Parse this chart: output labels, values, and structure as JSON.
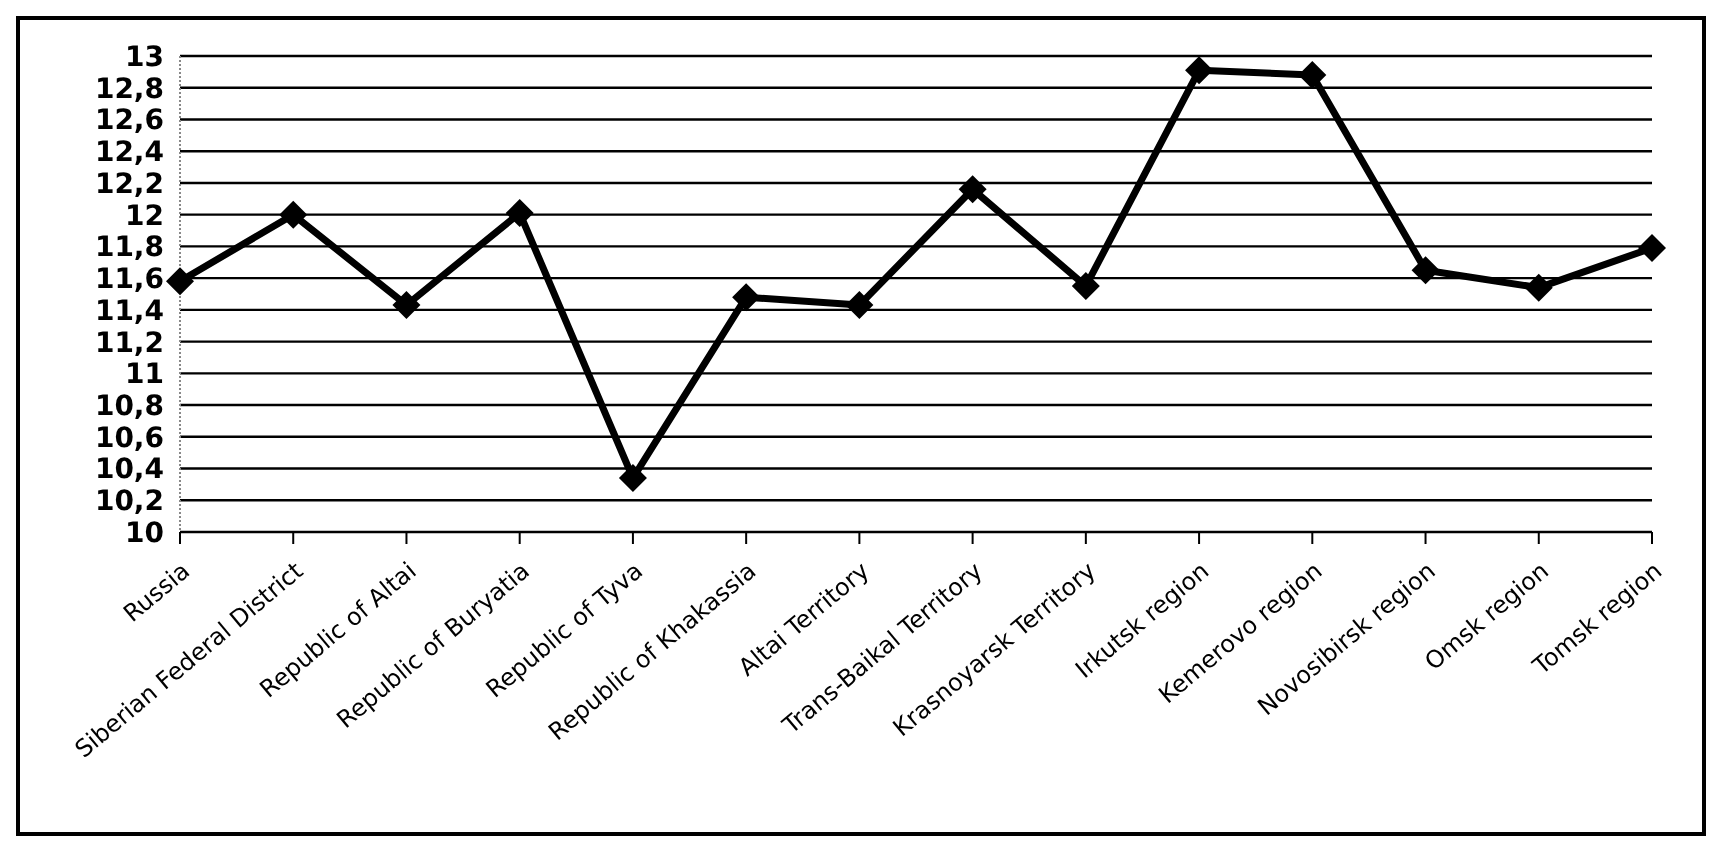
{
  "chart_data": {
    "type": "line",
    "categories": [
      "Russia",
      "Siberian Federal District",
      "Republic of Altai",
      "Republic of Buryatia",
      "Republic of Tyva",
      "Republic of Khakassia",
      "Altai Territory",
      "Trans-Baikal Territory",
      "Krasnoyarsk Territory",
      "Irkutsk region",
      "Kemerovo region",
      "Novosibirsk region",
      "Omsk region",
      "Tomsk region"
    ],
    "series": [
      {
        "color": "#000000",
        "values": [
          11.58,
          12.0,
          11.43,
          12.01,
          10.34,
          11.48,
          11.43,
          12.16,
          11.55,
          12.91,
          12.88,
          11.65,
          11.54,
          11.79
        ]
      }
    ],
    "ylim": [
      10,
      13
    ],
    "yticks": [
      {
        "value": 10,
        "label": "10"
      },
      {
        "value": 10.2,
        "label": "10,2"
      },
      {
        "value": 10.4,
        "label": "10,4"
      },
      {
        "value": 10.6,
        "label": "10,6"
      },
      {
        "value": 10.8,
        "label": "10,8"
      },
      {
        "value": 11,
        "label": "11"
      },
      {
        "value": 11.2,
        "label": "11,2"
      },
      {
        "value": 11.4,
        "label": "11,4"
      },
      {
        "value": 11.6,
        "label": "11,6"
      },
      {
        "value": 11.8,
        "label": "11,8"
      },
      {
        "value": 12,
        "label": "12"
      },
      {
        "value": 12.2,
        "label": "12,2"
      },
      {
        "value": 12.4,
        "label": "12,4"
      },
      {
        "value": 12.6,
        "label": "12,6"
      },
      {
        "value": 12.8,
        "label": "12,8"
      },
      {
        "value": 13,
        "label": "13"
      }
    ],
    "grid": "y",
    "marker": "diamond",
    "line_style": "solid",
    "legend": false
  }
}
